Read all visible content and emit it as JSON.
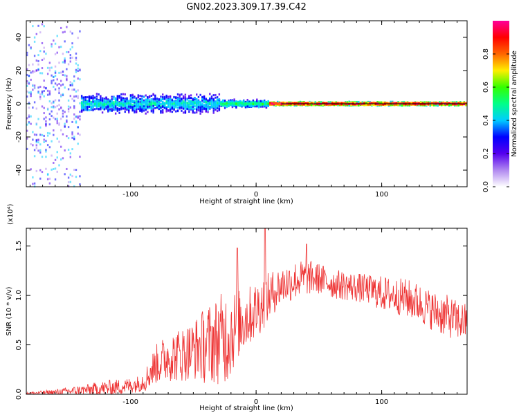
{
  "figure_title": "GN02.2023.309.17.39.C42",
  "chart_data": [
    {
      "type": "heatmap",
      "xlabel": "Height of straight line (km)",
      "ylabel": "Frequency (Hz)",
      "xlim": [
        -183,
        168
      ],
      "ylim": [
        -50,
        50
      ],
      "x_ticks": [
        -100,
        0,
        100
      ],
      "x_tick_labels": [
        "-100",
        "0",
        "100"
      ],
      "y_ticks": [
        -40,
        -20,
        0,
        20,
        40
      ],
      "y_tick_labels": [
        "-40",
        "-20",
        "0",
        "20",
        "40"
      ],
      "grid": false,
      "reference_line_frequency": 0,
      "colorbar": {
        "label": "Normalized spectral amplitude",
        "range": [
          0,
          1
        ],
        "ticks": [
          0.0,
          0.2,
          0.4,
          0.6,
          0.8
        ],
        "tick_labels": [
          "0.0",
          "0.2",
          "0.4",
          "0.6",
          "0.8"
        ],
        "colormap": [
          "#ffffff",
          "#b088f0",
          "#5500ee",
          "#0000ff",
          "#00ccff",
          "#00ff88",
          "#33ff00",
          "#ffee00",
          "#ff6600",
          "#ff0000",
          "#ff0099"
        ]
      },
      "description_regions": [
        {
          "x_range": [
            -183,
            -140
          ],
          "freq_spread_hz": 50,
          "amplitude": 0.1
        },
        {
          "x_range": [
            -140,
            -30
          ],
          "freq_spread_hz": 10,
          "amplitude": 0.4
        },
        {
          "x_range": [
            -30,
            10
          ],
          "freq_spread_hz": 4,
          "amplitude": 0.5
        },
        {
          "x_range": [
            10,
            168
          ],
          "freq_spread_hz": 2,
          "amplitude": 0.95
        }
      ]
    },
    {
      "type": "line",
      "xlabel": "Height of straight line (km)",
      "ylabel": "SNR (10 * v/v)",
      "y_multiplier_label": "(x10⁴)",
      "xlim": [
        -183,
        168
      ],
      "ylim": [
        0,
        1.68
      ],
      "x_ticks": [
        -100,
        0,
        100
      ],
      "x_tick_labels": [
        "-100",
        "0",
        "100"
      ],
      "y_ticks": [
        0.0,
        0.5,
        1.0,
        1.5
      ],
      "y_tick_labels": [
        "0.0",
        "0.5",
        "1.0",
        "1.5"
      ],
      "grid": false,
      "series": [
        {
          "color": "#ee3333",
          "envelope": {
            "x": [
              -183,
              -160,
              -140,
              -120,
              -105,
              -95,
              -88,
              -80,
              -70,
              -60,
              -50,
              -40,
              -30,
              -22,
              -15,
              -10,
              -5,
              0,
              5,
              10,
              15,
              20,
              30,
              40,
              50,
              60,
              70,
              80,
              90,
              100,
              110,
              120,
              130,
              140,
              150,
              160,
              168
            ],
            "mean": [
              0.01,
              0.02,
              0.04,
              0.06,
              0.08,
              0.1,
              0.15,
              0.3,
              0.38,
              0.4,
              0.45,
              0.5,
              0.55,
              0.6,
              0.7,
              0.75,
              0.8,
              0.85,
              0.92,
              0.98,
              1.05,
              1.1,
              1.15,
              1.18,
              1.17,
              1.12,
              1.1,
              1.08,
              1.06,
              1.02,
              1.0,
              0.97,
              0.92,
              0.85,
              0.8,
              0.75,
              0.72
            ],
            "amplitude": [
              0.01,
              0.03,
              0.05,
              0.08,
              0.08,
              0.08,
              0.12,
              0.2,
              0.25,
              0.28,
              0.3,
              0.4,
              0.45,
              0.5,
              0.35,
              0.35,
              0.3,
              0.3,
              0.28,
              0.25,
              0.22,
              0.2,
              0.2,
              0.18,
              0.16,
              0.15,
              0.15,
              0.15,
              0.15,
              0.18,
              0.18,
              0.2,
              0.2,
              0.2,
              0.22,
              0.2,
              0.2
            ]
          },
          "peaks": [
            {
              "x": 7,
              "y": 1.68
            },
            {
              "x": -15,
              "y": 1.48
            },
            {
              "x": 40,
              "y": 1.52
            }
          ]
        }
      ]
    }
  ]
}
